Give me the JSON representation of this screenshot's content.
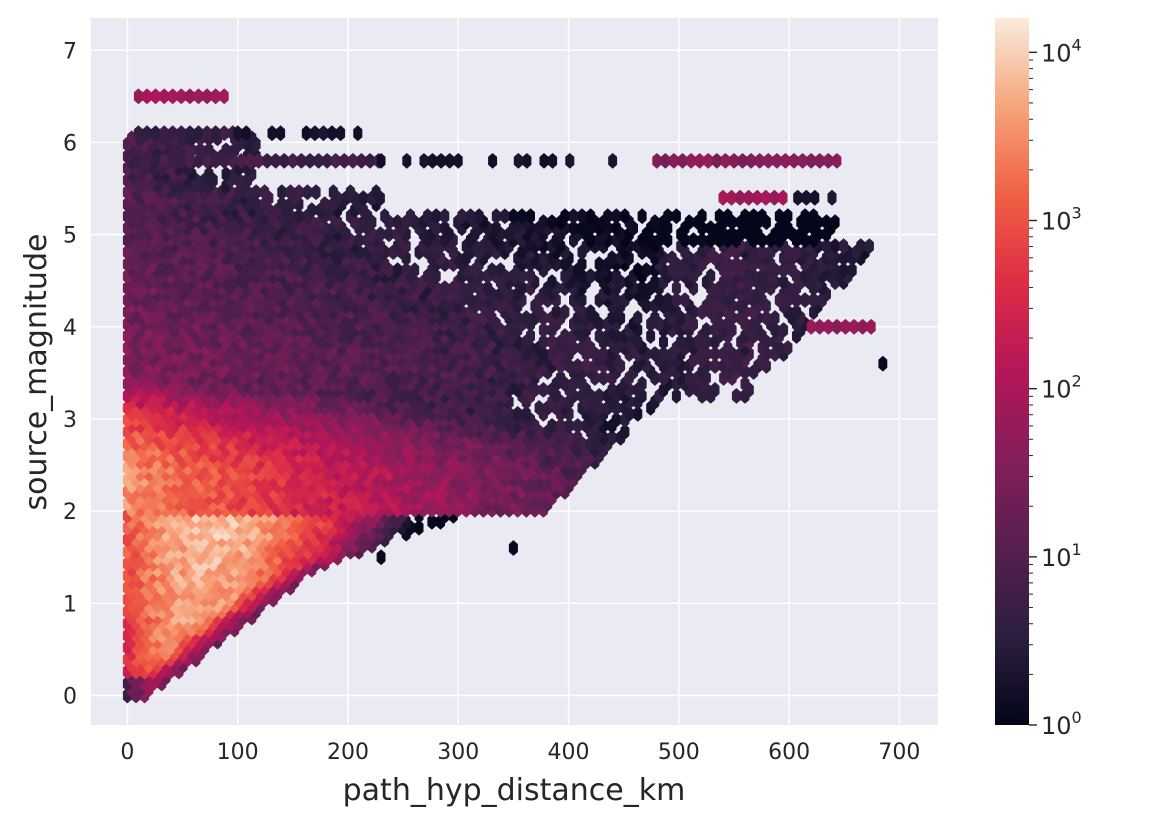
{
  "chart_data": {
    "type": "hexbin",
    "xlabel": "path_hyp_distance_km",
    "ylabel": "source_magnitude",
    "xlim": [
      -33,
      735
    ],
    "ylim": [
      -0.32,
      7.35
    ],
    "xticks": [
      "0",
      "100",
      "200",
      "300",
      "400",
      "500",
      "600",
      "700"
    ],
    "xtick_values": [
      0,
      100,
      200,
      300,
      400,
      500,
      600,
      700
    ],
    "yticks": [
      "0",
      "1",
      "2",
      "3",
      "4",
      "5",
      "6",
      "7"
    ],
    "ytick_values": [
      0,
      1,
      2,
      3,
      4,
      5,
      6,
      7
    ],
    "grid": true,
    "background": "#eaeaf2",
    "colormap": "rocket",
    "colorbar": {
      "scale": "log",
      "range": [
        1,
        16000
      ],
      "ticks": [
        {
          "base": "10",
          "exp": "0",
          "value": 1
        },
        {
          "base": "10",
          "exp": "1",
          "value": 10
        },
        {
          "base": "10",
          "exp": "2",
          "value": 100
        },
        {
          "base": "10",
          "exp": "3",
          "value": 1000
        },
        {
          "base": "10",
          "exp": "4",
          "value": 10000
        }
      ]
    },
    "hexbin_gridsize": [
      90,
      50
    ],
    "density_regions": [
      {
        "x": [
          0,
          660
        ],
        "y": [
          2.0,
          5.0
        ],
        "approx_count": "10-100"
      },
      {
        "x": [
          0,
          180
        ],
        "y": [
          2.0,
          3.6
        ],
        "approx_count": "1000-16000"
      },
      {
        "x": [
          0,
          90
        ],
        "y": [
          0.2,
          2.0
        ],
        "approx_count": "1000-10000"
      },
      {
        "x": [
          500,
          680
        ],
        "y": [
          3.2,
          4.8
        ],
        "approx_count": "1-10"
      },
      {
        "x": [
          10,
          90
        ],
        "y": [
          6.5,
          6.5
        ],
        "approx_count": "10-100"
      },
      {
        "x": [
          480,
          650
        ],
        "y": [
          5.8,
          5.8
        ],
        "approx_count": "10-100"
      }
    ]
  }
}
